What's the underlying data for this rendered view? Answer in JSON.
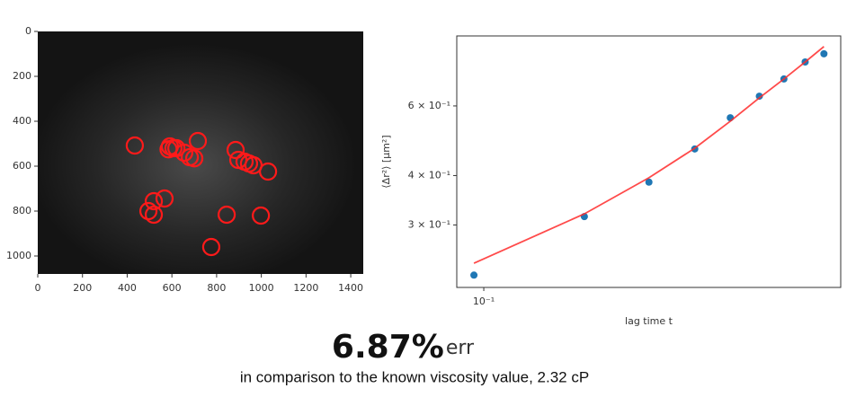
{
  "chart_data": [
    {
      "type": "scatter",
      "marker": "ring",
      "color": "#ff1a1a",
      "yinvert": true,
      "x": [
        434,
        591,
        607,
        585,
        620,
        655,
        716,
        680,
        700,
        885,
        897,
        925,
        945,
        965,
        1030,
        519,
        567,
        495,
        519,
        845,
        998,
        776
      ],
      "values": [
        508,
        512,
        520,
        525,
        520,
        540,
        488,
        560,
        565,
        528,
        572,
        580,
        588,
        596,
        624,
        756,
        744,
        800,
        816,
        816,
        820,
        960
      ],
      "xlim": [
        0,
        1456
      ],
      "ylim": [
        0,
        1080
      ],
      "xticks": [
        0,
        200,
        400,
        600,
        800,
        1000,
        1200,
        1400
      ],
      "yticks": [
        0,
        200,
        400,
        600,
        800,
        1000
      ]
    },
    {
      "type": "scatter",
      "xscale": "log",
      "yscale": "log",
      "xlabel": "lag time t",
      "ylabel": "⟨Δr²⟩ [μm²]",
      "x": [
        0.094,
        0.188,
        0.282,
        0.376,
        0.47,
        0.564,
        0.658,
        0.752,
        0.846
      ],
      "series": [
        {
          "style": "markers",
          "color": "#1f77b4",
          "values": [
            0.224,
            0.315,
            0.385,
            0.467,
            0.56,
            0.635,
            0.702,
            0.775,
            0.813
          ]
        },
        {
          "style": "line",
          "color": "#ff2a2a",
          "values": [
            0.24,
            0.32,
            0.395,
            0.469,
            0.549,
            0.629,
            0.702,
            0.775,
            0.848
          ]
        }
      ],
      "xlim": [
        0.0844,
        0.94
      ],
      "ylim": [
        0.2085,
        0.902
      ],
      "xticks": [
        {
          "value": 0.1,
          "label": "10⁻¹"
        }
      ],
      "yticks": [
        {
          "value": 0.3,
          "label": "3 × 10⁻¹"
        },
        {
          "value": 0.4,
          "label": "4 × 10⁻¹"
        },
        {
          "value": 0.6,
          "label": "6 × 10⁻¹"
        }
      ]
    }
  ],
  "headline": {
    "value": "6.87%",
    "unit": "err"
  },
  "caption": "in comparison to the known viscosity value, 2.32 cP"
}
